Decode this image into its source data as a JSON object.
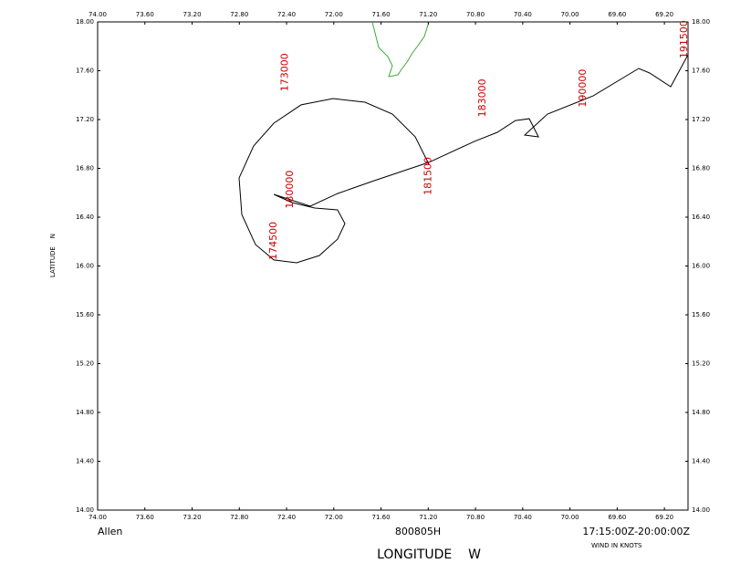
{
  "chart_data": {
    "type": "line",
    "xlabel": "LONGITUDE    W",
    "ylabel": "LATITUDE    N",
    "footer": {
      "left": "Allen",
      "center": "800805H",
      "right": "17:15:00Z-20:00:00Z",
      "note": "WIND IN KNOTS"
    },
    "xlim": [
      74,
      69
    ],
    "ylim": [
      14,
      18
    ],
    "xticks": [
      {
        "value": 74,
        "label": "74.00"
      },
      {
        "value": 73.6,
        "label": "73.60"
      },
      {
        "value": 73.2,
        "label": "73.20"
      },
      {
        "value": 72.8,
        "label": "72.80"
      },
      {
        "value": 72.4,
        "label": "72.40"
      },
      {
        "value": 72,
        "label": "72.00"
      },
      {
        "value": 71.6,
        "label": "71.60"
      },
      {
        "value": 71.2,
        "label": "71.20"
      },
      {
        "value": 70.8,
        "label": "70.80"
      },
      {
        "value": 70.4,
        "label": "70.40"
      },
      {
        "value": 70,
        "label": "70.00"
      },
      {
        "value": 69.6,
        "label": "69.60"
      },
      {
        "value": 69.2,
        "label": "69.20"
      }
    ],
    "yticks": [
      {
        "value": 14,
        "label": "14.00"
      },
      {
        "value": 14.4,
        "label": "14.40"
      },
      {
        "value": 14.8,
        "label": "14.80"
      },
      {
        "value": 15.2,
        "label": "15.20"
      },
      {
        "value": 15.6,
        "label": "15.60"
      },
      {
        "value": 16,
        "label": "16.00"
      },
      {
        "value": 16.4,
        "label": "16.40"
      },
      {
        "value": 16.8,
        "label": "16.80"
      },
      {
        "value": 17.2,
        "label": "17.20"
      },
      {
        "value": 17.6,
        "label": "17.60"
      },
      {
        "value": 18,
        "label": "18.00"
      }
    ],
    "color": "#000000",
    "x": [
      71.195,
      71.31,
      71.504,
      71.736,
      72.006,
      72.277,
      72.508,
      72.679,
      72.802,
      72.779,
      72.663,
      72.508,
      72.315,
      72.122,
      71.968,
      71.906,
      71.968,
      72.161,
      72.354,
      72.508,
      72.199,
      71.968,
      71.658,
      71.195,
      70.808,
      70.615,
      70.461,
      70.345,
      70.267,
      70.383,
      70.19,
      69.804,
      69.417,
      69.325,
      69.147,
      69.0
    ],
    "values": [
      16.834,
      17.058,
      17.245,
      17.342,
      17.372,
      17.32,
      17.17,
      16.983,
      16.721,
      16.422,
      16.176,
      16.049,
      16.026,
      16.086,
      16.22,
      16.348,
      16.46,
      16.475,
      16.52,
      16.587,
      16.49,
      16.594,
      16.699,
      16.849,
      17.021,
      17.095,
      17.192,
      17.207,
      17.058,
      17.073,
      17.245,
      17.394,
      17.619,
      17.581,
      17.469,
      17.731
    ],
    "annotation_color": "#cc0000",
    "annotations": [
      {
        "text": "173000",
        "x": 72.41,
        "y": 17.43
      },
      {
        "text": "174500",
        "x": 72.51,
        "y": 16.05
      },
      {
        "text": "180000",
        "x": 72.37,
        "y": 16.47
      },
      {
        "text": "181500",
        "x": 71.2,
        "y": 16.58
      },
      {
        "text": "183000",
        "x": 70.74,
        "y": 17.22
      },
      {
        "text": "190000",
        "x": 69.89,
        "y": 17.3
      },
      {
        "text": "191500",
        "x": 69.03,
        "y": 17.7
      }
    ]
  }
}
